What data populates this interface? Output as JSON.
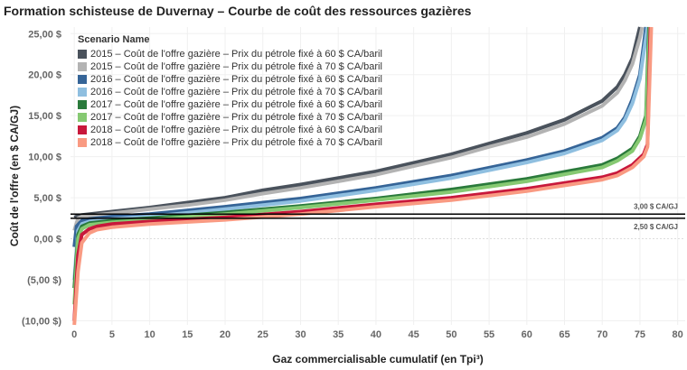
{
  "chart_data": {
    "type": "line",
    "title": "Formation schisteuse de Duvernay – Courbe de coût des ressources gazières",
    "xlabel": "Gaz commercialisable cumulatif (en Tpi³)",
    "ylabel": "Coût de l'offre (en $ CA/GJ)",
    "xlim": [
      -0.5,
      81
    ],
    "ylim": [
      -10.5,
      25.8
    ],
    "xticks": [
      0,
      5,
      10,
      15,
      20,
      25,
      30,
      35,
      40,
      45,
      50,
      55,
      60,
      65,
      70,
      75,
      80
    ],
    "yticks": [
      {
        "value": 25,
        "label": "25,00 $"
      },
      {
        "value": 20,
        "label": "20,00 $"
      },
      {
        "value": 15,
        "label": "15,00 $"
      },
      {
        "value": 10,
        "label": "10,00 $"
      },
      {
        "value": 5,
        "label": "5,00 $"
      },
      {
        "value": 0,
        "label": "0,00 $"
      },
      {
        "value": -5,
        "label": "(5,00 $)"
      },
      {
        "value": -10,
        "label": "(10,00 $)"
      }
    ],
    "grid": true,
    "legend_title": "Scenario Name",
    "legend_position": "top-left",
    "reference_lines": [
      {
        "value": 3.0,
        "label": "3,00 $ CA/GJ"
      },
      {
        "value": 2.5,
        "label": "2,50 $ CA/GJ"
      }
    ],
    "series": [
      {
        "name": "2015 – Coût de l'offre gazière – Prix du pétrole fixé à 60 $ CA/baril",
        "color": "#4a525c",
        "x": [
          0,
          0.5,
          1,
          5,
          10,
          15,
          20,
          25,
          30,
          40,
          50,
          55,
          60,
          65,
          70,
          72,
          73,
          74,
          75
        ],
        "y": [
          2.6,
          2.8,
          2.9,
          3.3,
          3.8,
          4.4,
          5.0,
          5.9,
          6.6,
          8.2,
          10.3,
          11.6,
          12.9,
          14.5,
          16.8,
          18.5,
          20,
          22,
          25.8
        ]
      },
      {
        "name": "2015 – Coût de l'offre gazière – Prix du pétrole fixé à 70 $ CA/baril",
        "color": "#b3b3b3",
        "x": [
          0,
          0.5,
          1,
          5,
          10,
          15,
          20,
          25,
          30,
          40,
          50,
          55,
          60,
          65,
          70,
          72,
          73,
          74,
          75,
          75.3
        ],
        "y": [
          1.0,
          2.5,
          2.7,
          3.1,
          3.6,
          4.1,
          4.7,
          5.5,
          6.2,
          7.8,
          9.9,
          11.2,
          12.4,
          14.0,
          16.2,
          17.8,
          19.3,
          21.3,
          24.5,
          25.8
        ]
      },
      {
        "name": "2016 – Coût de l'offre gazière – Prix du pétrole fixé à 60 $ CA/baril",
        "color": "#356497",
        "x": [
          0,
          0.3,
          1,
          2,
          5,
          10,
          20,
          30,
          40,
          50,
          60,
          65,
          70,
          72,
          73,
          74,
          75,
          75.8
        ],
        "y": [
          -1,
          1.5,
          2.2,
          2.4,
          2.7,
          3.0,
          3.9,
          4.9,
          6.2,
          7.7,
          9.6,
          10.7,
          12.3,
          13.5,
          14.8,
          17,
          20,
          25.8
        ]
      },
      {
        "name": "2016 – Coût de l'offre gazière – Prix du pétrole fixé à 70 $ CA/baril",
        "color": "#8fbfe0",
        "x": [
          0,
          0.5,
          1,
          2,
          5,
          10,
          20,
          30,
          40,
          50,
          60,
          65,
          70,
          72,
          73,
          74,
          75,
          76
        ],
        "y": [
          -5,
          1.0,
          1.8,
          2.1,
          2.4,
          2.7,
          3.6,
          4.6,
          5.9,
          7.4,
          9.3,
          10.4,
          12.0,
          13.2,
          14.5,
          16.5,
          19.5,
          25.8
        ]
      },
      {
        "name": "2017 – Coût de l'offre gazière – Prix du pétrole fixé à 60 $ CA/baril",
        "color": "#2a7a3b",
        "x": [
          0,
          0.5,
          1,
          2,
          5,
          10,
          20,
          30,
          40,
          50,
          60,
          70,
          72,
          74,
          75,
          75.8,
          76.2
        ],
        "y": [
          -6,
          0.5,
          1.5,
          1.9,
          2.2,
          2.5,
          3.2,
          4.0,
          4.9,
          6.0,
          7.3,
          9.0,
          9.8,
          11,
          12.5,
          15,
          25.8
        ]
      },
      {
        "name": "2017 – Coût de l'offre gazière – Prix du pétrole fixé à 70 $ CA/baril",
        "color": "#86c972",
        "x": [
          0,
          0.5,
          1,
          2,
          5,
          10,
          20,
          30,
          40,
          50,
          60,
          70,
          72,
          74,
          75,
          75.8,
          76.3
        ],
        "y": [
          -8,
          0,
          1.2,
          1.7,
          2.0,
          2.3,
          3.0,
          3.8,
          4.7,
          5.7,
          7.0,
          8.7,
          9.5,
          10.7,
          12.2,
          14.5,
          25.8
        ]
      },
      {
        "name": "2018 – Coût de l'offre gazière – Prix du pétrole fixé à 60 $ CA/baril",
        "color": "#c8183b",
        "x": [
          0,
          0.5,
          1,
          2,
          3,
          5,
          10,
          20,
          30,
          40,
          50,
          60,
          70,
          72,
          74,
          75.5,
          76,
          76.4
        ],
        "y": [
          -10,
          -2,
          0.5,
          1.2,
          1.5,
          1.8,
          2.1,
          2.6,
          3.3,
          4.2,
          5.0,
          6.1,
          7.5,
          8.0,
          9.0,
          10.3,
          11.5,
          25.8
        ]
      },
      {
        "name": "2018 – Coût de l'offre gazière – Prix du pétrole fixé à 70 $ CA/baril",
        "color": "#f99a82",
        "x": [
          0,
          0.5,
          1,
          2,
          3,
          5,
          10,
          20,
          30,
          40,
          50,
          60,
          70,
          72,
          74,
          75.5,
          76,
          76.5
        ],
        "y": [
          -10.5,
          -4,
          -0.5,
          0.7,
          1.1,
          1.4,
          1.8,
          2.3,
          3.0,
          3.9,
          4.7,
          5.8,
          7.2,
          7.7,
          8.7,
          10,
          11.2,
          25.8
        ]
      }
    ]
  }
}
